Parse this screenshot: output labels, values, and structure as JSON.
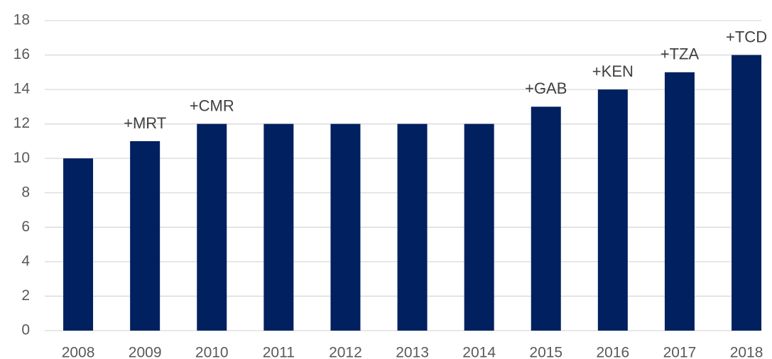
{
  "chart_data": {
    "type": "bar",
    "categories": [
      "2008",
      "2009",
      "2010",
      "2011",
      "2012",
      "2013",
      "2014",
      "2015",
      "2016",
      "2017",
      "2018"
    ],
    "values": [
      10,
      11,
      12,
      12,
      12,
      12,
      12,
      13,
      14,
      15,
      16
    ],
    "annotations": [
      null,
      "+MRT",
      "+CMR",
      null,
      null,
      null,
      null,
      "+GAB",
      "+KEN",
      "+TZA",
      "+TCD"
    ],
    "color": "#002060",
    "ylim": [
      0,
      18
    ],
    "yticks": [
      0,
      2,
      4,
      6,
      8,
      10,
      12,
      14,
      16,
      18
    ],
    "grid": true
  }
}
